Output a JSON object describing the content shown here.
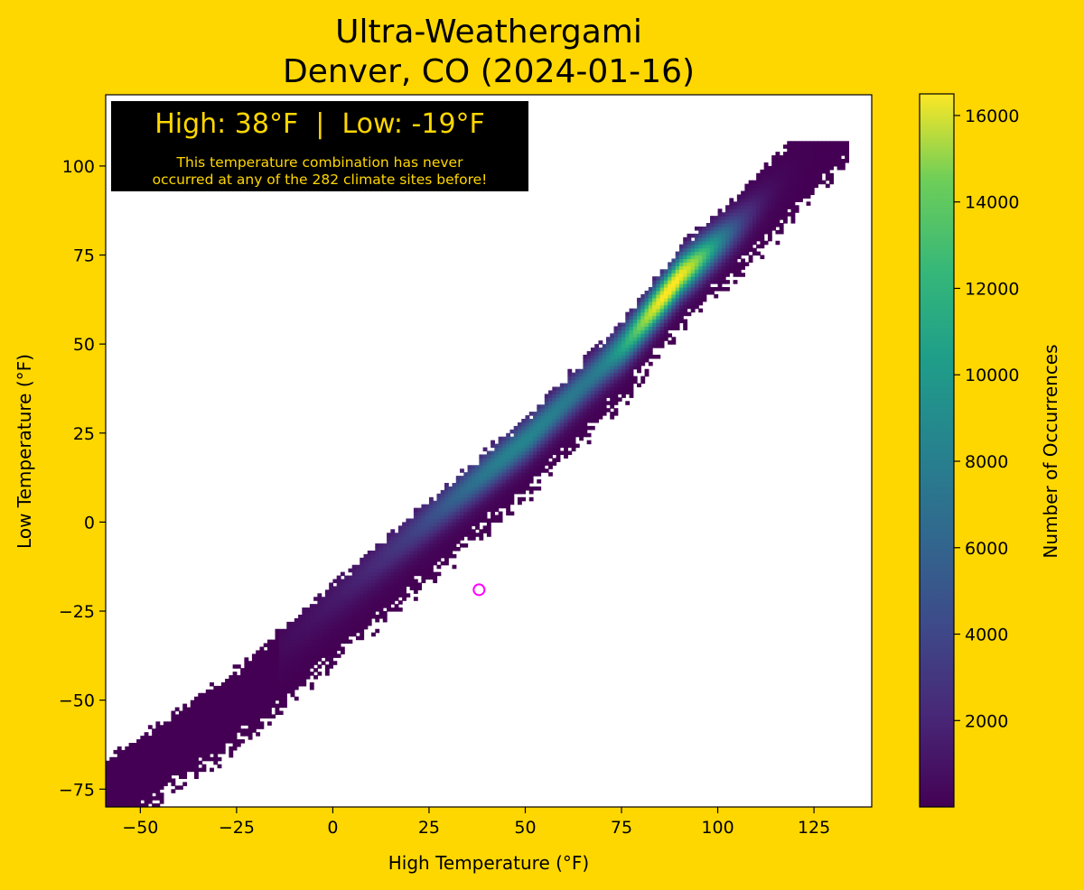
{
  "chart_data": {
    "type": "heatmap",
    "title_line1": "Ultra-Weathergami",
    "title_line2": "Denver, CO (2024-01-16)",
    "xlabel": "High Temperature (°F)",
    "ylabel": "Low Temperature (°F)",
    "xlim": [
      -59,
      140
    ],
    "ylim": [
      -80,
      120
    ],
    "x_ticks": [
      -50,
      -25,
      0,
      25,
      50,
      75,
      100,
      125
    ],
    "x_tick_labels": [
      "−50",
      "−25",
      "0",
      "25",
      "50",
      "75",
      "100",
      "125"
    ],
    "y_ticks": [
      -75,
      -50,
      -25,
      0,
      25,
      50,
      75,
      100
    ],
    "y_tick_labels": [
      "−75",
      "−50",
      "−25",
      "0",
      "25",
      "50",
      "75",
      "100"
    ],
    "colorbar": {
      "label": "Number of Occurrences",
      "min": 1,
      "max": 16500,
      "ticks": [
        2000,
        4000,
        6000,
        8000,
        10000,
        12000,
        14000,
        16000
      ],
      "tick_labels": [
        "2000",
        "4000",
        "6000",
        "8000",
        "10000",
        "12000",
        "14000",
        "16000"
      ],
      "colormap": "viridis"
    },
    "density_ridge": {
      "description_points_high": [
        -58,
        -25,
        0,
        25,
        50,
        75,
        90,
        105,
        120
      ],
      "description_points_low": [
        -68,
        -45,
        -22,
        0,
        22,
        48,
        68,
        82,
        98
      ]
    },
    "highlight_point": {
      "high": 38,
      "low": -19,
      "color": "#FF00FF"
    },
    "annotation": {
      "headline": "High: 38°F  |  Low: -19°F",
      "message_line1": "This temperature combination has never",
      "message_line2": "occurred at any of the 282 climate sites before!",
      "text_color": "#FFD700",
      "background": "#000000"
    }
  }
}
